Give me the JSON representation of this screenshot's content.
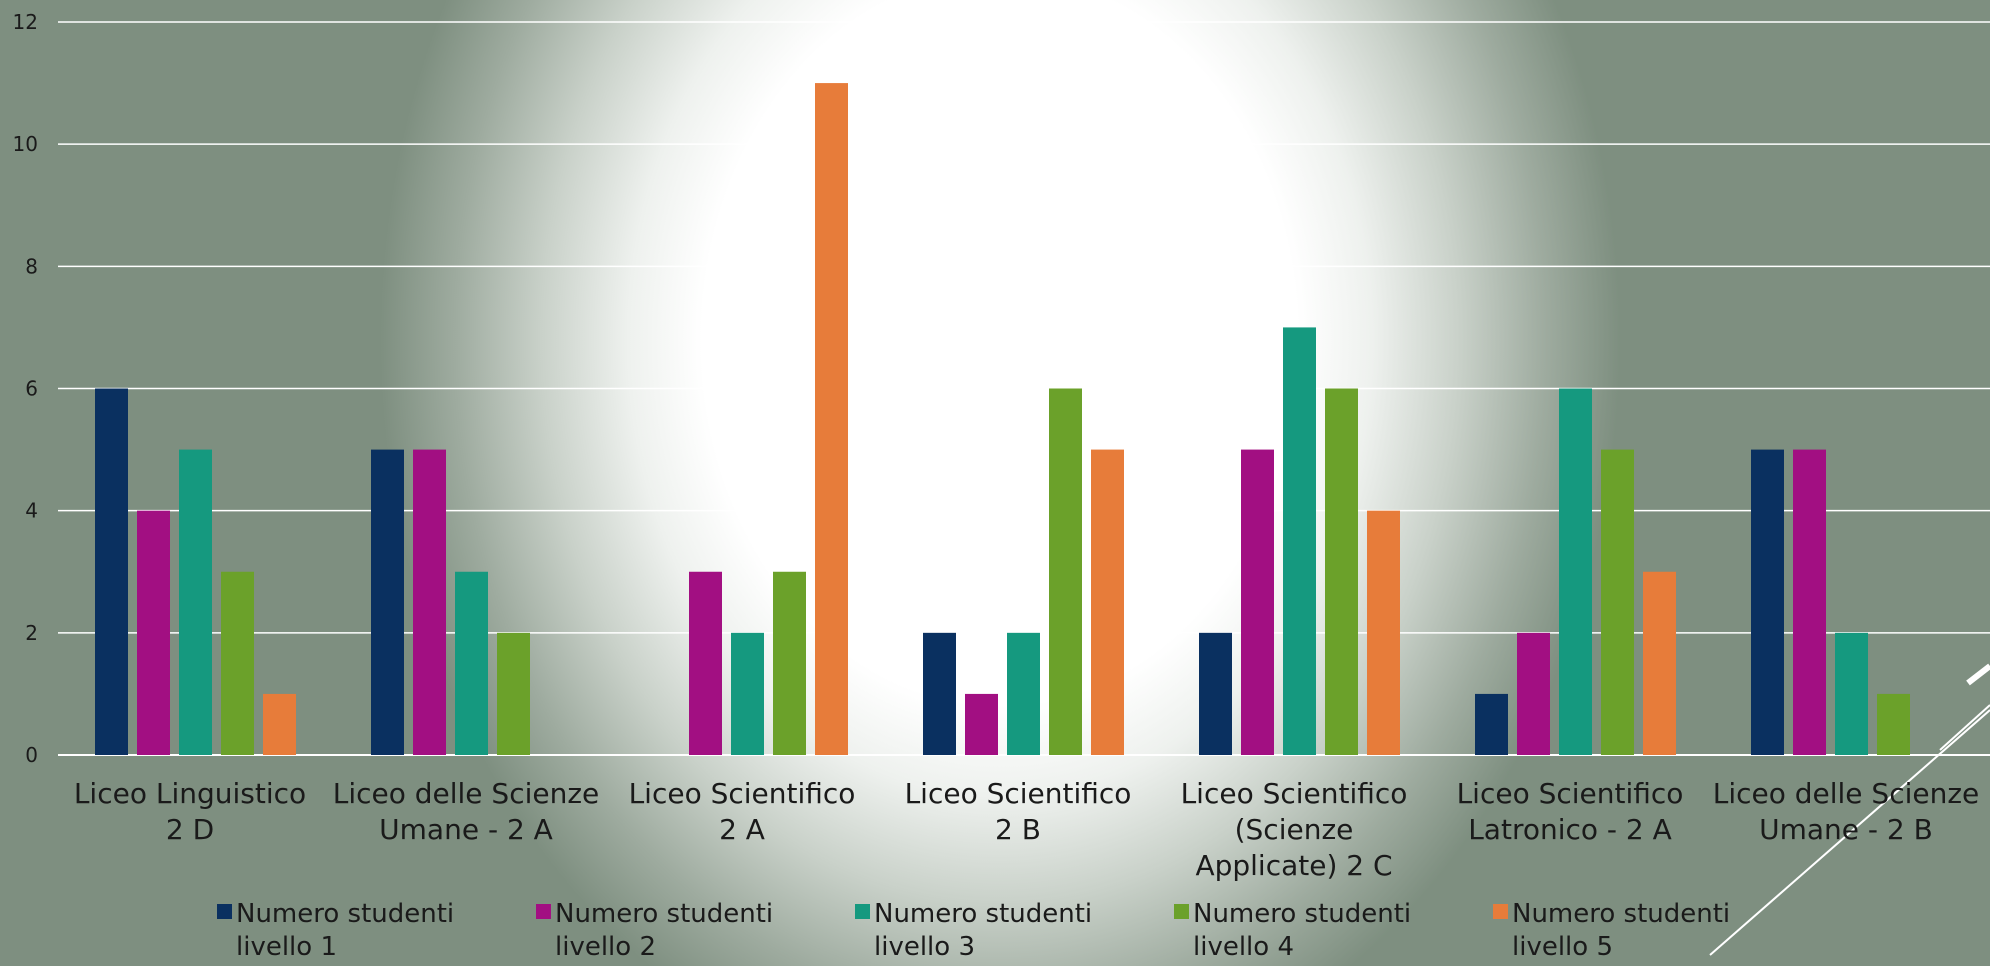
{
  "chart_data": {
    "type": "bar",
    "title": "",
    "xlabel": "",
    "ylabel": "",
    "ylim": [
      0,
      12
    ],
    "yticks": [
      0,
      2,
      4,
      6,
      8,
      10,
      12
    ],
    "grid": true,
    "legend_position": "bottom",
    "categories": [
      [
        "Liceo Linguistico",
        "2 D"
      ],
      [
        "Liceo delle Scienze",
        "Umane -  2 A"
      ],
      [
        "Liceo Scientifico",
        "2 A"
      ],
      [
        "Liceo Scientifico",
        "2 B"
      ],
      [
        "Liceo Scientifico",
        "(Scienze",
        "Applicate)  2 C"
      ],
      [
        "Liceo Scientifico",
        "Latronico - 2 A"
      ],
      [
        "Liceo delle Scienze",
        "Umane - 2 B"
      ]
    ],
    "series": [
      {
        "name": [
          "Numero studenti",
          "livello 1"
        ],
        "color": "#0a3060",
        "values": [
          6,
          5,
          0,
          2,
          2,
          1,
          5
        ]
      },
      {
        "name": [
          "Numero studenti",
          "livello 2"
        ],
        "color": "#a20f82",
        "values": [
          4,
          5,
          3,
          1,
          5,
          2,
          5
        ]
      },
      {
        "name": [
          "Numero studenti",
          "livello 3"
        ],
        "color": "#15997f",
        "values": [
          5,
          3,
          2,
          2,
          7,
          6,
          2
        ]
      },
      {
        "name": [
          "Numero studenti",
          "livello 4"
        ],
        "color": "#6ba12a",
        "values": [
          3,
          2,
          3,
          6,
          6,
          5,
          1
        ]
      },
      {
        "name": [
          "Numero studenti",
          "livello 5"
        ],
        "color": "#e77c3a",
        "values": [
          1,
          0,
          11,
          5,
          4,
          3,
          0
        ]
      }
    ]
  }
}
